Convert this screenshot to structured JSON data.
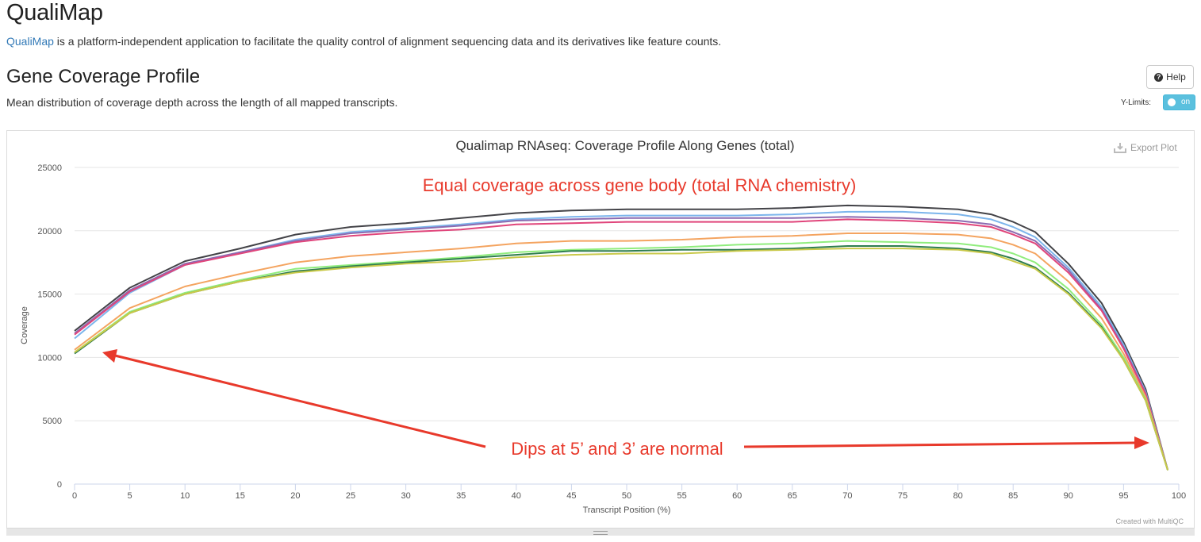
{
  "header": {
    "title": "QualiMap",
    "intro_link": "QualiMap",
    "intro_text": " is a platform-independent application to facilitate the quality control of alignment sequencing data and its derivatives like feature counts."
  },
  "section": {
    "title": "Gene Coverage Profile",
    "description": "Mean distribution of coverage depth across the length of all mapped transcripts.",
    "help_label": "Help",
    "ylimits_label": "Y-Limits:",
    "ylimits_toggle": "on"
  },
  "plot_toolbar": {
    "export_label": "Export Plot",
    "credit": "Created with MultiQC"
  },
  "colors": {
    "annotation": "#e8392b",
    "grid": "#e6e6e6",
    "toggle": "#5bc0de"
  },
  "chart_data": {
    "type": "line",
    "title": "Qualimap RNAseq: Coverage Profile Along Genes (total)",
    "xlabel": "Transcript Position (%)",
    "ylabel": "Coverage",
    "xlim": [
      0,
      100
    ],
    "ylim": [
      0,
      25000
    ],
    "xticks": [
      0,
      5,
      10,
      15,
      20,
      25,
      30,
      35,
      40,
      45,
      50,
      55,
      60,
      65,
      70,
      75,
      80,
      85,
      90,
      95,
      100
    ],
    "yticks": [
      0,
      5000,
      10000,
      15000,
      20000,
      25000
    ],
    "grid": true,
    "x": [
      0,
      5,
      10,
      15,
      20,
      25,
      30,
      35,
      40,
      45,
      50,
      55,
      60,
      65,
      70,
      75,
      80,
      83,
      85,
      87,
      90,
      93,
      95,
      97,
      99
    ],
    "series": [
      {
        "color": "#434348",
        "values": [
          12100,
          15500,
          17600,
          18600,
          19700,
          20300,
          20600,
          21000,
          21400,
          21600,
          21700,
          21700,
          21700,
          21800,
          22000,
          21900,
          21700,
          21300,
          20700,
          19900,
          17400,
          14300,
          11200,
          7500,
          1100
        ]
      },
      {
        "color": "#7cb5ec",
        "values": [
          11500,
          15100,
          17300,
          18300,
          19300,
          19900,
          20200,
          20500,
          20900,
          21100,
          21200,
          21200,
          21200,
          21300,
          21500,
          21500,
          21300,
          20900,
          20300,
          19500,
          17100,
          14000,
          11000,
          7300,
          1100
        ]
      },
      {
        "color": "#8c6bb1",
        "values": [
          11900,
          15300,
          17400,
          18300,
          19200,
          19800,
          20100,
          20400,
          20800,
          20900,
          21000,
          21000,
          21000,
          21000,
          21100,
          21000,
          20800,
          20500,
          19900,
          19200,
          16900,
          13800,
          10800,
          7200,
          1100
        ]
      },
      {
        "color": "#e0457b",
        "values": [
          11800,
          15200,
          17300,
          18200,
          19100,
          19600,
          19900,
          20100,
          20500,
          20600,
          20700,
          20700,
          20700,
          20700,
          20900,
          20800,
          20600,
          20300,
          19700,
          19000,
          16700,
          13700,
          10700,
          7100,
          1100
        ]
      },
      {
        "color": "#f4a460",
        "values": [
          10600,
          13900,
          15600,
          16600,
          17500,
          18000,
          18300,
          18600,
          19000,
          19200,
          19200,
          19300,
          19500,
          19600,
          19800,
          19800,
          19700,
          19400,
          18900,
          18200,
          16000,
          13100,
          10300,
          6900,
          1100
        ]
      },
      {
        "color": "#90ed7d",
        "values": [
          10400,
          13600,
          15100,
          16100,
          17000,
          17300,
          17600,
          17900,
          18300,
          18500,
          18600,
          18700,
          18900,
          19000,
          19200,
          19100,
          19000,
          18700,
          18200,
          17500,
          15400,
          12600,
          10000,
          6700,
          1100
        ]
      },
      {
        "color": "#2f7d4f",
        "values": [
          10300,
          13500,
          15000,
          16000,
          16800,
          17200,
          17500,
          17800,
          18100,
          18400,
          18400,
          18500,
          18500,
          18600,
          18800,
          18800,
          18600,
          18300,
          17800,
          17100,
          15100,
          12400,
          9800,
          6600,
          1100
        ]
      },
      {
        "color": "#c9c94a",
        "values": [
          10400,
          13500,
          15000,
          16000,
          16700,
          17100,
          17400,
          17600,
          17900,
          18100,
          18200,
          18200,
          18400,
          18500,
          18600,
          18600,
          18500,
          18200,
          17600,
          17000,
          15000,
          12300,
          9800,
          6600,
          1100
        ]
      }
    ],
    "annotations": [
      {
        "text": "Equal coverage across gene body (total RNA chemistry)"
      },
      {
        "text": "Dips at 5’ and 3’ are normal"
      }
    ]
  }
}
